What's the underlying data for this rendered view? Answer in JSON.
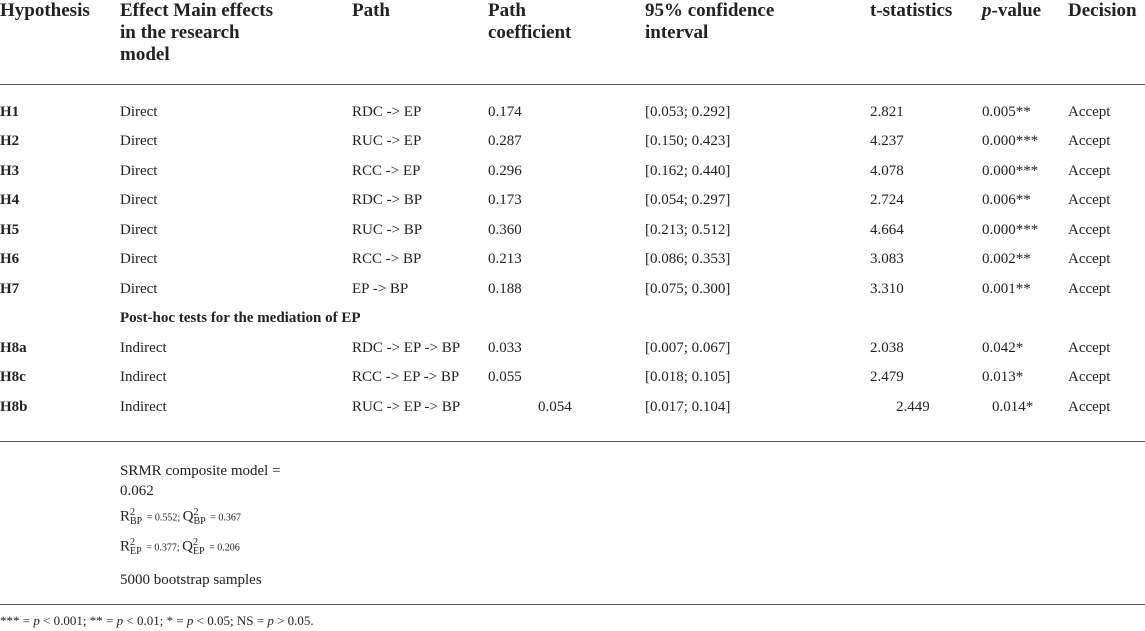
{
  "headers": {
    "hypothesis": "Hypothesis",
    "effect": [
      "Effect Main effects",
      "in the research",
      "model"
    ],
    "path": "Path",
    "coef": [
      "Path",
      "coefficient"
    ],
    "ci": [
      "95% confidence",
      "interval"
    ],
    "tstat": "t-statistics",
    "pvalue_italic": "p",
    "pvalue_rest": "-value",
    "decision": "Decision"
  },
  "rows": [
    {
      "hyp": "H1",
      "effect": "Direct",
      "path": "RDC -> EP",
      "coef": "0.174",
      "ci": "[0.053; 0.292]",
      "t": "2.821",
      "p": "0.005**",
      "decision": "Accept"
    },
    {
      "hyp": "H2",
      "effect": "Direct",
      "path": "RUC -> EP",
      "coef": "0.287",
      "ci": "[0.150; 0.423]",
      "t": "4.237",
      "p": "0.000***",
      "decision": "Accept"
    },
    {
      "hyp": "H3",
      "effect": "Direct",
      "path": "RCC -> EP",
      "coef": "0.296",
      "ci": "[0.162; 0.440]",
      "t": "4.078",
      "p": "0.000***",
      "decision": "Accept"
    },
    {
      "hyp": "H4",
      "effect": "Direct",
      "path": "RDC -> BP",
      "coef": "0.173",
      "ci": "[0.054; 0.297]",
      "t": "2.724",
      "p": "0.006**",
      "decision": "Accept"
    },
    {
      "hyp": "H5",
      "effect": "Direct",
      "path": "RUC -> BP",
      "coef": "0.360",
      "ci": "[0.213; 0.512]",
      "t": "4.664",
      "p": "0.000***",
      "decision": "Accept"
    },
    {
      "hyp": "H6",
      "effect": "Direct",
      "path": "RCC -> BP",
      "coef": "0.213",
      "ci": "[0.086; 0.353]",
      "t": "3.083",
      "p": "0.002**",
      "decision": "Accept"
    },
    {
      "hyp": "H7",
      "effect": "Direct",
      "path": "EP -> BP",
      "coef": "0.188",
      "ci": "[0.075; 0.300]",
      "t": "3.310",
      "p": "0.001**",
      "decision": "Accept"
    }
  ],
  "subheading": "Post-hoc tests for the mediation of EP",
  "rows2": [
    {
      "hyp": "H8a",
      "effect": "Indirect",
      "path": "RDC -> EP -> BP",
      "coef": "0.033",
      "ci": "[0.007; 0.067]",
      "t": "2.038",
      "p": "0.042*",
      "decision": "Accept"
    },
    {
      "hyp": "H8c",
      "effect": "Indirect",
      "path": "RCC -> EP -> BP",
      "coef": "0.055",
      "ci": "[0.018; 0.105]",
      "t": "2.479",
      "p": "0.013*",
      "decision": "Accept"
    },
    {
      "hyp": "H8b",
      "effect": "Indirect",
      "path": "RUC -> EP -> BP",
      "coef": "0.054",
      "ci": "[0.017; 0.104]",
      "t": "2.449",
      "p": "0.014*",
      "decision": "Accept"
    }
  ],
  "notes": {
    "srmr_line1": "SRMR composite model =",
    "srmr_line2": "0.062",
    "r_bp": {
      "R": "R",
      "sup": "2",
      "sub": "BP",
      "val": " = 0.552; ",
      "Q": "Q",
      "qsup": "2",
      "qsub": "BP",
      "qval": " = 0.367"
    },
    "r_ep": {
      "R": "R",
      "sup": "2",
      "sub": "EP",
      "val": " = 0.377; ",
      "Q": "Q",
      "qsup": "2",
      "qsub": "EP",
      "qval": " = 0.206"
    },
    "bootstrap": "5000 bootstrap samples"
  },
  "footer": [
    {
      "t": "*** = ",
      "i": false
    },
    {
      "t": "p",
      "i": true
    },
    {
      "t": " < 0.001; ** = ",
      "i": false
    },
    {
      "t": "p",
      "i": true
    },
    {
      "t": " < 0.01; * = ",
      "i": false
    },
    {
      "t": "p",
      "i": true
    },
    {
      "t": " < 0.05; NS = ",
      "i": false
    },
    {
      "t": "p",
      "i": true
    },
    {
      "t": " > 0.05.",
      "i": false
    }
  ]
}
